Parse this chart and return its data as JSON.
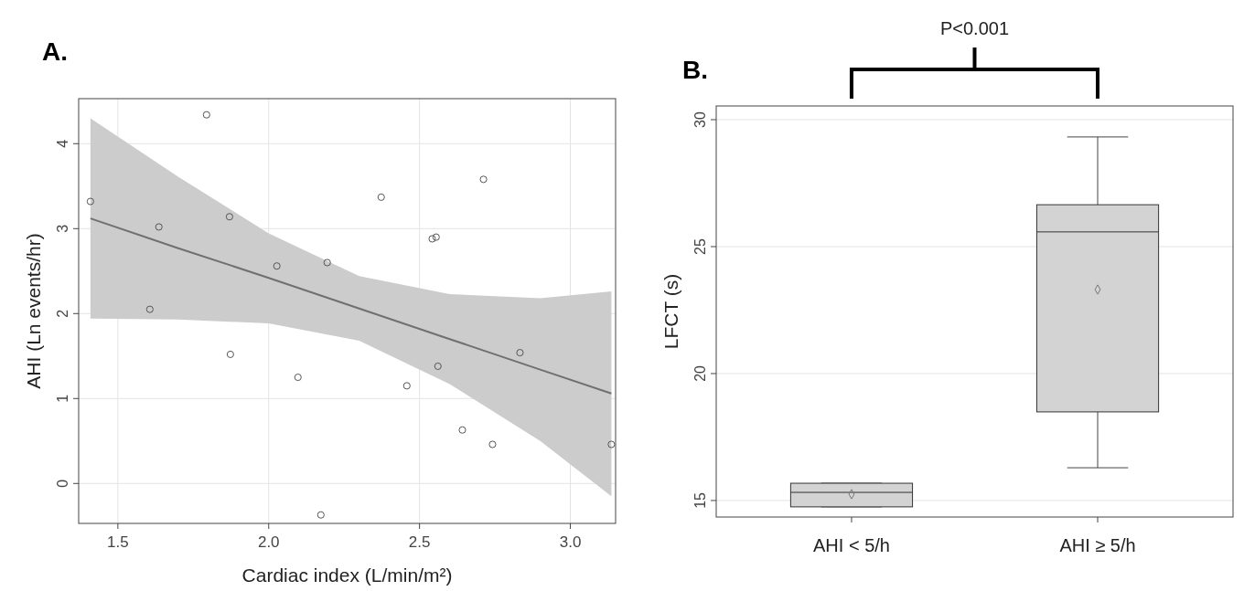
{
  "chart_data": [
    {
      "type": "scatter",
      "title": "A.",
      "xlabel": "Cardiac index (L/min/m²)",
      "ylabel": "AHI (Ln events/hr)",
      "xlim": [
        1.37,
        3.15
      ],
      "ylim": [
        -0.47,
        4.53
      ],
      "xticks": [
        {
          "value": 1.5,
          "label": "1.5"
        },
        {
          "value": 2,
          "label": "2.0"
        },
        {
          "value": 2.5,
          "label": "2.5"
        },
        {
          "value": 3,
          "label": "3.0"
        }
      ],
      "yticks": [
        0,
        1,
        2,
        3,
        4
      ],
      "grid": true,
      "marker": "circle",
      "series": [
        {
          "type": "line",
          "marker": "none",
          "color": "#707070",
          "x": [
            1.409,
            1.7,
            2.0,
            2.3,
            2.6,
            2.9,
            3.136
          ],
          "values": [
            3.12,
            2.77,
            2.42,
            2.06,
            1.7,
            1.34,
            1.06
          ],
          "lower": [
            1.94,
            1.93,
            1.885,
            1.68,
            1.17,
            0.5,
            -0.15
          ],
          "upper": [
            4.3,
            3.61,
            2.945,
            2.44,
            2.23,
            2.18,
            2.26
          ]
        },
        {
          "type": "scatter",
          "color": "#555555",
          "x": [
            1.409,
            1.636,
            1.606,
            1.794,
            1.87,
            1.873,
            2.027,
            2.097,
            2.194,
            2.173,
            2.373,
            2.458,
            2.542,
            2.555,
            2.561,
            2.642,
            2.712,
            2.742,
            2.833,
            3.136
          ],
          "values": [
            3.32,
            3.02,
            2.05,
            4.34,
            3.14,
            1.52,
            2.56,
            1.25,
            2.6,
            -0.37,
            3.37,
            1.15,
            2.88,
            2.9,
            1.38,
            0.63,
            3.58,
            0.46,
            1.54,
            0.46
          ]
        }
      ]
    },
    {
      "type": "box",
      "title": "B.",
      "ylabel": "LFCT (s)",
      "categories": [
        "AHI < 5/h",
        "AHI ≥ 5/h"
      ],
      "ylim": [
        14.35,
        30.54
      ],
      "yticks": [
        15,
        20,
        25,
        30
      ],
      "grid": "y",
      "color": "#d3d3d3",
      "annotations": [
        "P<0.001"
      ],
      "boxes": [
        {
          "low": 14.75,
          "q1": 14.75,
          "median": 15.32,
          "q3": 15.68,
          "high": 15.68,
          "mean": 15.25
        },
        {
          "low": 16.29,
          "q1": 18.49,
          "median": 25.58,
          "q3": 26.65,
          "high": 29.32,
          "mean": 23.31
        }
      ]
    }
  ]
}
